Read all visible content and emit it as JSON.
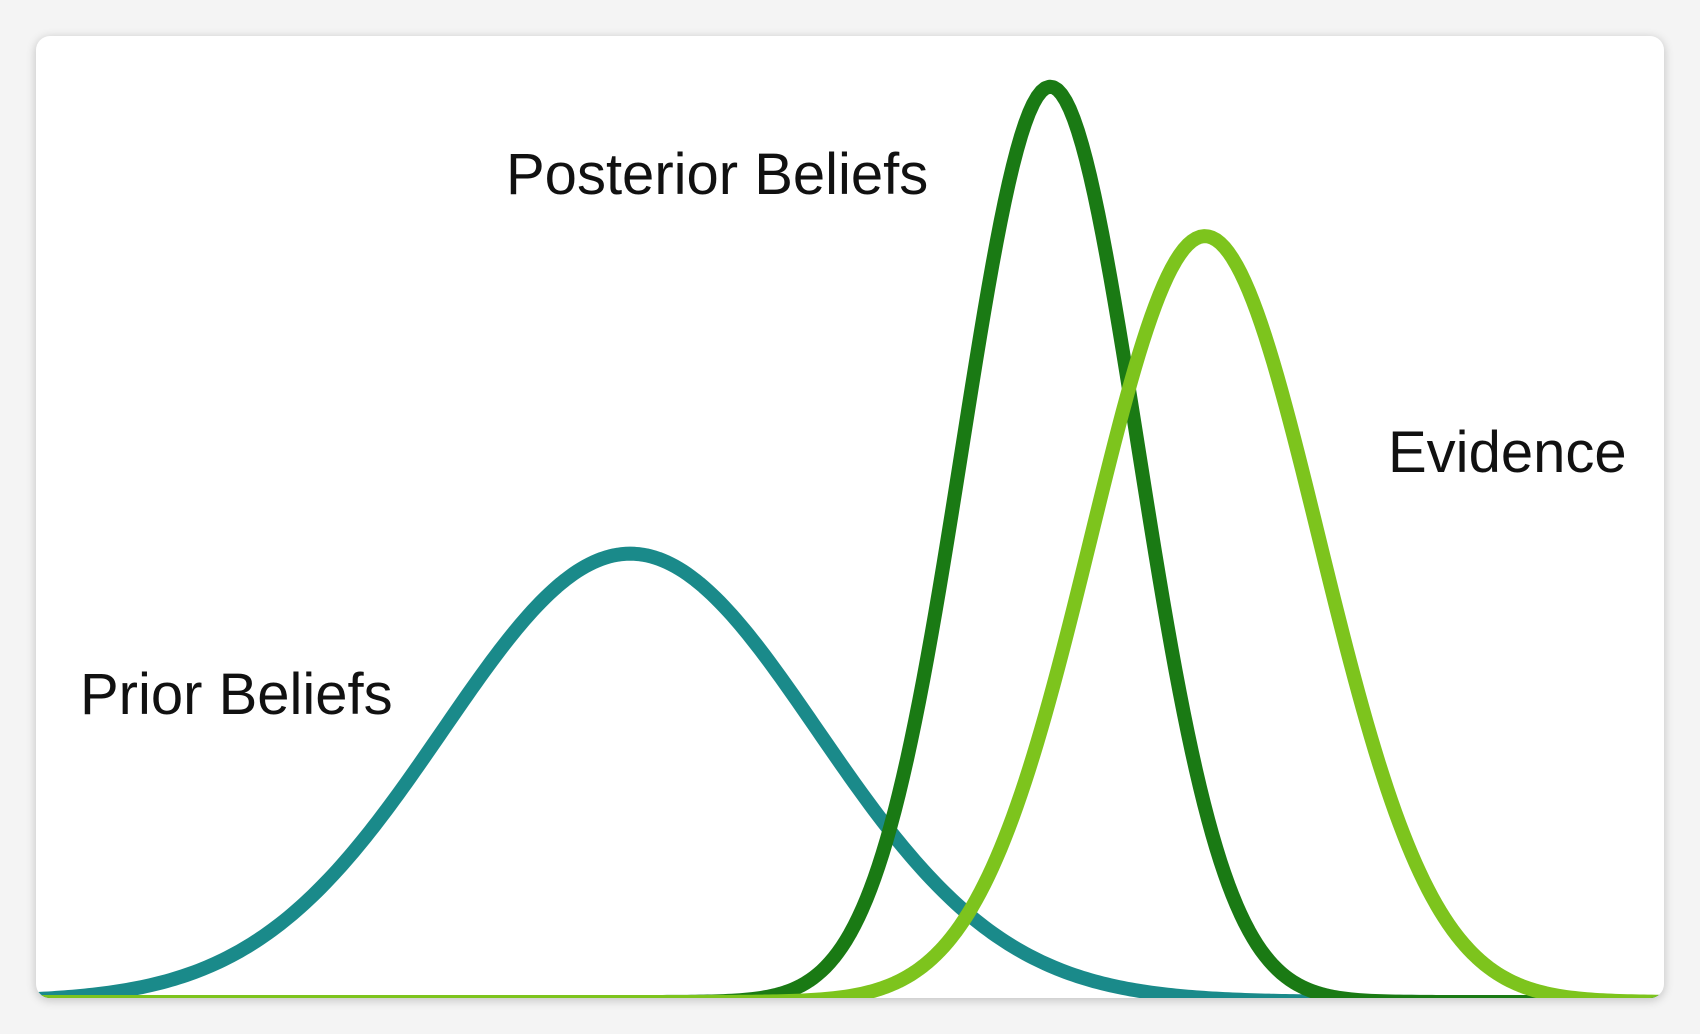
{
  "chart_data": {
    "type": "line",
    "title": "",
    "xlabel": "",
    "ylabel": "",
    "xlim": [
      0,
      100
    ],
    "ylim": [
      0,
      100
    ],
    "grid": false,
    "axes_visible": false,
    "legend": "inline labels",
    "series": [
      {
        "name": "Prior Beliefs",
        "color": "#1a8a8a",
        "mean": 36.5,
        "sd": 11.5,
        "peak": 48
      },
      {
        "name": "Posterior Beliefs",
        "color": "#1a7a14",
        "mean": 62.3,
        "sd": 5.4,
        "peak": 98
      },
      {
        "name": "Evidence",
        "color": "#7dc41d",
        "mean": 71.8,
        "sd": 7.0,
        "peak": 82
      }
    ]
  }
}
